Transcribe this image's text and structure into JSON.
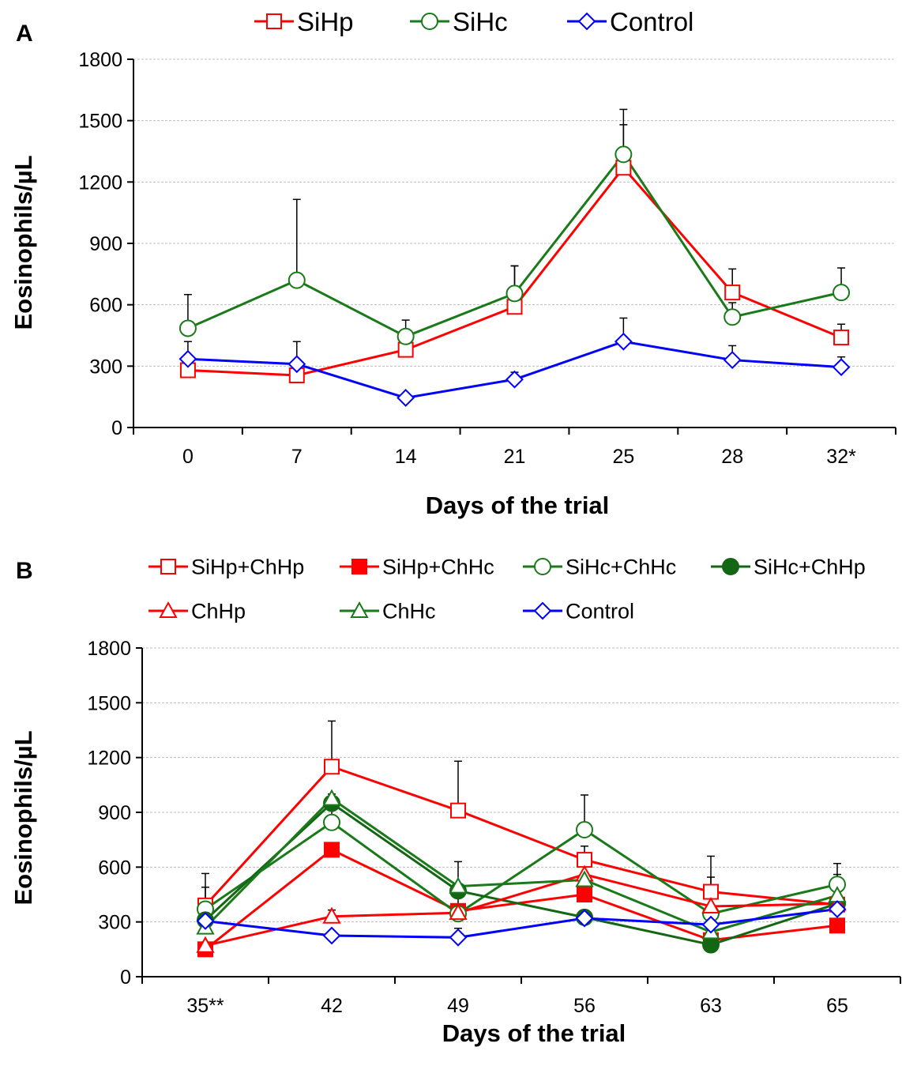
{
  "colors": {
    "red": "#ff0000",
    "green": "#1a7a1a",
    "darkgreen": "#136613",
    "blue": "#0000ff"
  },
  "chart_data": [
    {
      "panel_label": "A",
      "type": "line",
      "ylabel": "Eosinophils/µL",
      "xlabel": "Days of the trial",
      "ylim": [
        0,
        1800
      ],
      "yticks": [
        0,
        300,
        600,
        900,
        1200,
        1500,
        1800
      ],
      "categories": [
        "0",
        "7",
        "14",
        "21",
        "25",
        "28",
        "32*"
      ],
      "grid": true,
      "legend": "top",
      "series": [
        {
          "name": "SiHp",
          "color": "#ff0000",
          "marker": "square-open",
          "values": [
            280,
            255,
            380,
            590,
            1270,
            660,
            440
          ],
          "errors": [
            null,
            null,
            null,
            790,
            1480,
            775,
            505
          ]
        },
        {
          "name": "SiHc",
          "color": "#1a7a1a",
          "marker": "circle-open",
          "values": [
            485,
            720,
            445,
            655,
            1335,
            540,
            660
          ],
          "errors": [
            650,
            1115,
            525,
            790,
            1555,
            610,
            780
          ]
        },
        {
          "name": "Control",
          "color": "#0000ff",
          "marker": "diamond-open",
          "values": [
            335,
            310,
            145,
            235,
            420,
            330,
            295
          ],
          "errors": [
            420,
            420,
            165,
            270,
            535,
            400,
            345
          ]
        }
      ]
    },
    {
      "panel_label": "B",
      "type": "line",
      "ylabel": "Eosinophils/µL",
      "xlabel": "Days of the trial",
      "ylim": [
        0,
        1800
      ],
      "yticks": [
        0,
        300,
        600,
        900,
        1200,
        1500,
        1800
      ],
      "categories": [
        "35**",
        "42",
        "49",
        "56",
        "63",
        "65"
      ],
      "grid": true,
      "legend": "top",
      "series": [
        {
          "name": "SiHp+ChHp",
          "color": "#ff0000",
          "marker": "square-open",
          "values": [
            390,
            1150,
            910,
            640,
            465,
            395
          ],
          "errors": [
            565,
            1400,
            1180,
            715,
            660,
            560
          ]
        },
        {
          "name": "SiHp+ChHc",
          "color": "#ff0000",
          "marker": "square-filled",
          "values": [
            150,
            695,
            360,
            450,
            200,
            280
          ],
          "errors": [
            null,
            null,
            null,
            null,
            null,
            null
          ]
        },
        {
          "name": "SiHc+ChHc",
          "color": "#1a7a1a",
          "marker": "circle-open",
          "values": [
            370,
            845,
            345,
            805,
            345,
            505
          ],
          "errors": [
            490,
            1000,
            630,
            995,
            545,
            620
          ]
        },
        {
          "name": "SiHc+ChHp",
          "color": "#136613",
          "marker": "circle-filled",
          "values": [
            310,
            950,
            470,
            325,
            175,
            400
          ],
          "errors": [
            null,
            null,
            null,
            null,
            null,
            null
          ]
        },
        {
          "name": "ChHp",
          "color": "#ff0000",
          "marker": "triangle-open",
          "values": [
            170,
            330,
            350,
            560,
            385,
            400
          ],
          "errors": [
            null,
            365,
            null,
            null,
            null,
            null
          ]
        },
        {
          "name": "ChHc",
          "color": "#1a7a1a",
          "marker": "triangle-open",
          "values": [
            270,
            975,
            495,
            530,
            245,
            445
          ],
          "errors": [
            null,
            null,
            null,
            null,
            null,
            null
          ]
        },
        {
          "name": "Control",
          "color": "#0000ff",
          "marker": "diamond-open",
          "values": [
            305,
            225,
            215,
            320,
            285,
            370
          ],
          "errors": [
            null,
            null,
            265,
            null,
            null,
            null
          ]
        }
      ]
    }
  ]
}
